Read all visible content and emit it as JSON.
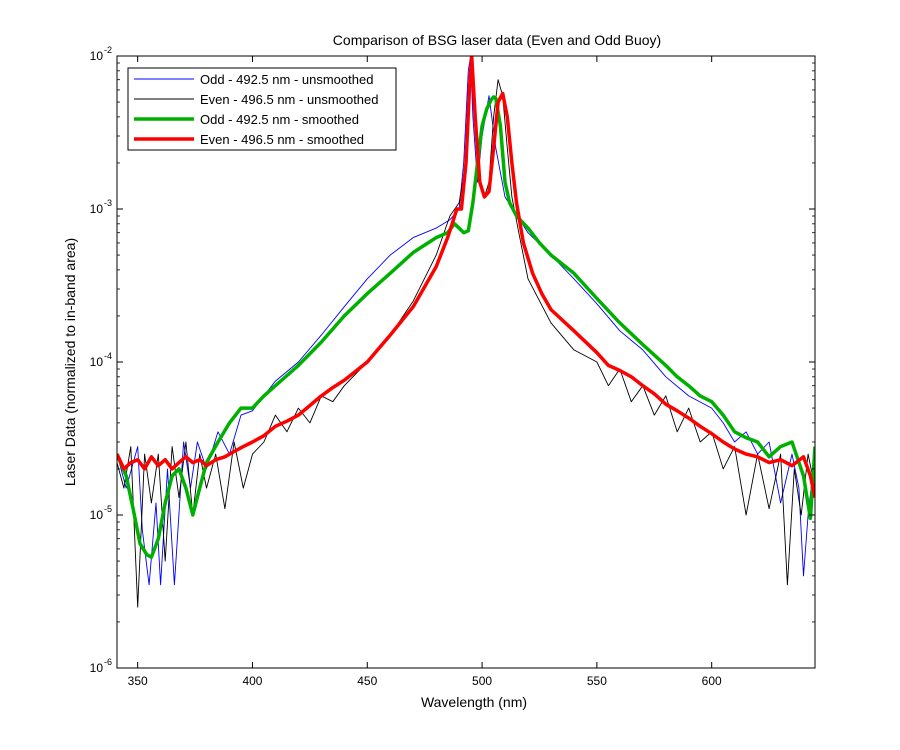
{
  "chart_data": {
    "type": "line",
    "title": "Comparison of BSG laser data (Even and Odd Buoy)",
    "xlabel": "Wavelength (nm)",
    "ylabel": "Laser Data (normalized to in-band area)",
    "xlim": [
      341,
      645
    ],
    "ylim": [
      1e-06,
      0.01
    ],
    "y_scale": "log",
    "grid": false,
    "legend_position": "top-left",
    "x_ticks": [
      {
        "value": 350,
        "label": "350"
      },
      {
        "value": 400,
        "label": "400"
      },
      {
        "value": 450,
        "label": "450"
      },
      {
        "value": 500,
        "label": "500"
      },
      {
        "value": 550,
        "label": "550"
      },
      {
        "value": 600,
        "label": "600"
      }
    ],
    "y_ticks": [
      {
        "value": 1e-06,
        "base": "10",
        "exp": "-6"
      },
      {
        "value": 1e-05,
        "base": "10",
        "exp": "-5"
      },
      {
        "value": 0.0001,
        "base": "10",
        "exp": "-4"
      },
      {
        "value": 0.001,
        "base": "10",
        "exp": "-3"
      },
      {
        "value": 0.01,
        "base": "10",
        "exp": "-2"
      }
    ],
    "series": [
      {
        "name": "Odd - 492.5 nm - unsmoothed",
        "color": "#0000ff",
        "style": "thin",
        "x": [
          341,
          345,
          350,
          352,
          355,
          358,
          360,
          363,
          366,
          370,
          373,
          376,
          380,
          385,
          390,
          395,
          400,
          405,
          410,
          420,
          430,
          440,
          450,
          460,
          470,
          480,
          486,
          490,
          492,
          493,
          494,
          495,
          496,
          498,
          500,
          503,
          506,
          510,
          520,
          530,
          540,
          550,
          560,
          570,
          580,
          590,
          600,
          605,
          610,
          615,
          620,
          625,
          630,
          635,
          638,
          640,
          642,
          645
        ],
        "y": [
          2.5e-05,
          1.5e-05,
          2.8e-05,
          8e-06,
          3.5e-06,
          1.2e-05,
          3.5e-06,
          2e-05,
          3.5e-06,
          3e-05,
          1.5e-05,
          3e-05,
          2e-05,
          3.5e-05,
          2.5e-05,
          4.5e-05,
          4.8e-05,
          6e-05,
          7.5e-05,
          0.0001,
          0.00015,
          0.00023,
          0.00035,
          0.0005,
          0.00065,
          0.00075,
          0.00085,
          0.001,
          0.002,
          0.004,
          0.008,
          0.01,
          0.004,
          0.0015,
          0.003,
          0.0055,
          0.0025,
          0.0012,
          0.0007,
          0.0005,
          0.00035,
          0.00024,
          0.00016,
          0.00012,
          8e-05,
          6e-05,
          5e-05,
          4e-05,
          3e-05,
          3.5e-05,
          2.5e-05,
          3e-05,
          1.2e-05,
          2.5e-05,
          1.5e-05,
          4e-06,
          1e-05,
          2.5e-05
        ]
      },
      {
        "name": "Even - 496.5 nm - unsmoothed",
        "color": "#000000",
        "style": "thin",
        "x": [
          341,
          344,
          347,
          350,
          353,
          356,
          359,
          362,
          365,
          368,
          371,
          374,
          377,
          380,
          384,
          388,
          392,
          396,
          400,
          405,
          410,
          415,
          420,
          425,
          430,
          435,
          440,
          450,
          460,
          470,
          480,
          486,
          490,
          493,
          494.5,
          495.5,
          497,
          499,
          501,
          503,
          505,
          507,
          509,
          511,
          513,
          516,
          520,
          530,
          540,
          550,
          555,
          560,
          565,
          570,
          575,
          580,
          585,
          590,
          595,
          600,
          605,
          610,
          615,
          620,
          625,
          630,
          633,
          636,
          639,
          642,
          645
        ],
        "y": [
          2.2e-05,
          1.5e-05,
          2.8e-05,
          2.5e-06,
          2.5e-05,
          1.2e-05,
          2.5e-05,
          5e-06,
          2.8e-05,
          1.3e-05,
          3e-05,
          1e-05,
          2.5e-05,
          1.5e-05,
          2.5e-05,
          1.1e-05,
          3e-05,
          1.5e-05,
          2.5e-05,
          3e-05,
          4.5e-05,
          3.5e-05,
          5e-05,
          4e-05,
          6e-05,
          5.5e-05,
          7e-05,
          0.0001,
          0.00015,
          0.00025,
          0.0005,
          0.0009,
          0.0011,
          0.002,
          0.006,
          0.01,
          0.004,
          0.0015,
          0.0012,
          0.0015,
          0.004,
          0.007,
          0.0055,
          0.0025,
          0.0012,
          0.0007,
          0.00035,
          0.00018,
          0.00012,
          0.0001,
          7e-05,
          9e-05,
          5.5e-05,
          7e-05,
          4.5e-05,
          6e-05,
          3.5e-05,
          5e-05,
          3e-05,
          3.5e-05,
          2e-05,
          2.8e-05,
          1e-05,
          2.5e-05,
          1.1e-05,
          2.5e-05,
          3.5e-06,
          2e-05,
          1e-05,
          2.5e-05,
          1.5e-05
        ]
      },
      {
        "name": "Odd - 492.5 nm - smoothed",
        "color": "#00b000",
        "style": "thick",
        "x": [
          341,
          345,
          348,
          351,
          354,
          356,
          359,
          362,
          365,
          368,
          371,
          374,
          377,
          380,
          385,
          390,
          395,
          400,
          405,
          410,
          420,
          430,
          440,
          450,
          460,
          470,
          480,
          485,
          488,
          490,
          492,
          494,
          496,
          498,
          500,
          502,
          504,
          505,
          506,
          508,
          510,
          512,
          515,
          520,
          525,
          530,
          540,
          550,
          560,
          570,
          580,
          585,
          590,
          595,
          600,
          605,
          610,
          615,
          620,
          625,
          630,
          635,
          640,
          643,
          645
        ],
        "y": [
          2.5e-05,
          1.8e-05,
          1.1e-05,
          6.5e-06,
          5.5e-06,
          5.3e-06,
          7e-06,
          1.2e-05,
          1.8e-05,
          2e-05,
          1.5e-05,
          1e-05,
          1.5e-05,
          2.2e-05,
          3e-05,
          4e-05,
          5e-05,
          5e-05,
          6e-05,
          7e-05,
          9.5e-05,
          0.000135,
          0.0002,
          0.00028,
          0.00038,
          0.00052,
          0.00065,
          0.0007,
          0.0008,
          0.00075,
          0.0007,
          0.00072,
          0.0011,
          0.002,
          0.0035,
          0.0045,
          0.0052,
          0.0054,
          0.0053,
          0.0035,
          0.0015,
          0.0011,
          0.0009,
          0.00075,
          0.0006,
          0.0005,
          0.00038,
          0.00026,
          0.00018,
          0.00013,
          9.5e-05,
          8e-05,
          7e-05,
          6e-05,
          5.5e-05,
          4.5e-05,
          3.5e-05,
          3.2e-05,
          3e-05,
          2.4e-05,
          2.8e-05,
          3e-05,
          1.8e-05,
          9.5e-06,
          2.8e-05
        ]
      },
      {
        "name": "Even - 496.5 nm - smoothed",
        "color": "#ff0000",
        "style": "thick",
        "x": [
          341,
          344,
          347,
          350,
          353,
          356,
          359,
          362,
          365,
          368,
          371,
          374,
          377,
          380,
          384,
          388,
          392,
          396,
          400,
          405,
          410,
          415,
          420,
          425,
          430,
          435,
          440,
          450,
          460,
          470,
          480,
          485,
          487,
          489,
          491,
          493,
          494.5,
          495.5,
          497,
          499,
          501,
          503,
          505,
          507,
          509,
          511,
          513,
          515,
          518,
          522,
          526,
          530,
          540,
          550,
          555,
          560,
          565,
          570,
          575,
          580,
          585,
          590,
          595,
          600,
          605,
          610,
          615,
          620,
          625,
          630,
          635,
          640,
          643,
          645
        ],
        "y": [
          2.5e-05,
          2e-05,
          2.2e-05,
          2.3e-05,
          2e-05,
          2.4e-05,
          2.1e-05,
          2.3e-05,
          2e-05,
          2.2e-05,
          2.4e-05,
          2.2e-05,
          2.3e-05,
          2.1e-05,
          2.3e-05,
          2.4e-05,
          2.6e-05,
          2.8e-05,
          3e-05,
          3.3e-05,
          3.8e-05,
          4.1e-05,
          4.5e-05,
          5.2e-05,
          6e-05,
          6.8e-05,
          7.6e-05,
          0.0001,
          0.00015,
          0.00023,
          0.00042,
          0.00065,
          0.0008,
          0.001,
          0.001,
          0.002,
          0.006,
          0.01,
          0.004,
          0.0015,
          0.0012,
          0.0013,
          0.0025,
          0.005,
          0.0057,
          0.004,
          0.002,
          0.0011,
          0.0006,
          0.00038,
          0.00028,
          0.00022,
          0.00016,
          0.000115,
          9.5e-05,
          8.8e-05,
          8e-05,
          7e-05,
          6.2e-05,
          5.3e-05,
          4.8e-05,
          4.3e-05,
          3.8e-05,
          3.4e-05,
          3e-05,
          2.7e-05,
          2.5e-05,
          2.4e-05,
          2.2e-05,
          2.3e-05,
          2.1e-05,
          2.4e-05,
          1.8e-05,
          1.3e-05
        ]
      }
    ]
  }
}
